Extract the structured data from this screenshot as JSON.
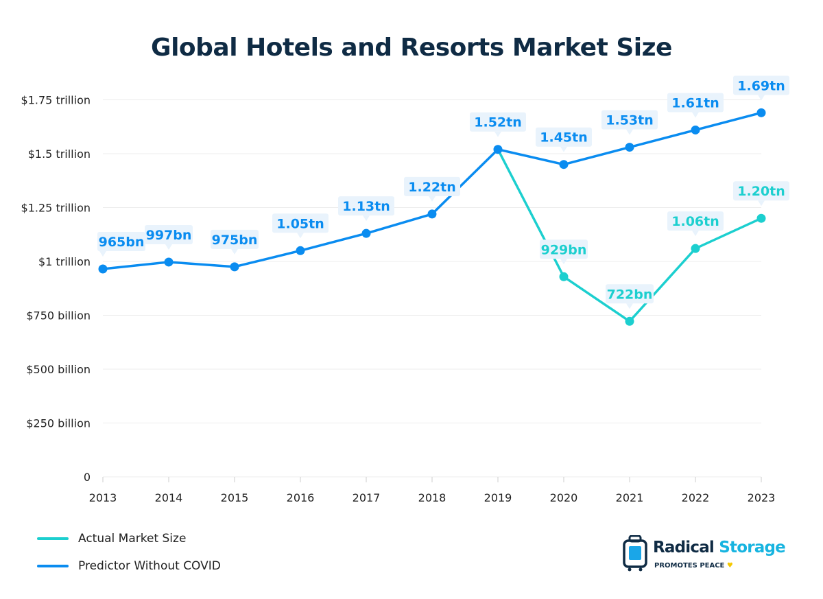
{
  "chart_data": {
    "type": "line",
    "title": "Global Hotels and Resorts Market Size",
    "xlabel": "",
    "ylabel": "",
    "categories": [
      "2013",
      "2014",
      "2015",
      "2016",
      "2017",
      "2018",
      "2019",
      "2020",
      "2021",
      "2022",
      "2023"
    ],
    "ylim": [
      0,
      1.75
    ],
    "y_unit": "trillion USD",
    "y_ticks": [
      {
        "value": 0,
        "label": "0"
      },
      {
        "value": 0.25,
        "label": "$250 billion"
      },
      {
        "value": 0.5,
        "label": "$500 billion"
      },
      {
        "value": 0.75,
        "label": "$750 billion"
      },
      {
        "value": 1.0,
        "label": "$1 trillion"
      },
      {
        "value": 1.25,
        "label": "$1.25 trillion"
      },
      {
        "value": 1.5,
        "label": "$1.5 trillion"
      },
      {
        "value": 1.75,
        "label": "$1.75 trillion"
      }
    ],
    "grid": true,
    "legend_placement": "bottom-left",
    "series": [
      {
        "name": "Actual Market Size",
        "color": "#1ccfcf",
        "values": [
          null,
          null,
          null,
          null,
          null,
          null,
          1.52,
          0.929,
          0.722,
          1.06,
          1.2
        ],
        "labels": [
          null,
          null,
          null,
          null,
          null,
          null,
          null,
          "929bn",
          "722bn",
          "1.06tn",
          "1.20tn"
        ]
      },
      {
        "name": "Predictor Without COVID",
        "color": "#0a8cf0",
        "values": [
          0.965,
          0.997,
          0.975,
          1.05,
          1.13,
          1.22,
          1.52,
          1.45,
          1.53,
          1.61,
          1.69
        ],
        "labels": [
          "965bn",
          "997bn",
          "975bn",
          "1.05tn",
          "1.13tn",
          "1.22tn",
          "1.52tn",
          "1.45tn",
          "1.53tn",
          "1.61tn",
          "1.69tn"
        ]
      }
    ]
  },
  "logo": {
    "name_part1": "Radical",
    "name_part2": "Storage",
    "tagline": "PROMOTES PEACE"
  }
}
